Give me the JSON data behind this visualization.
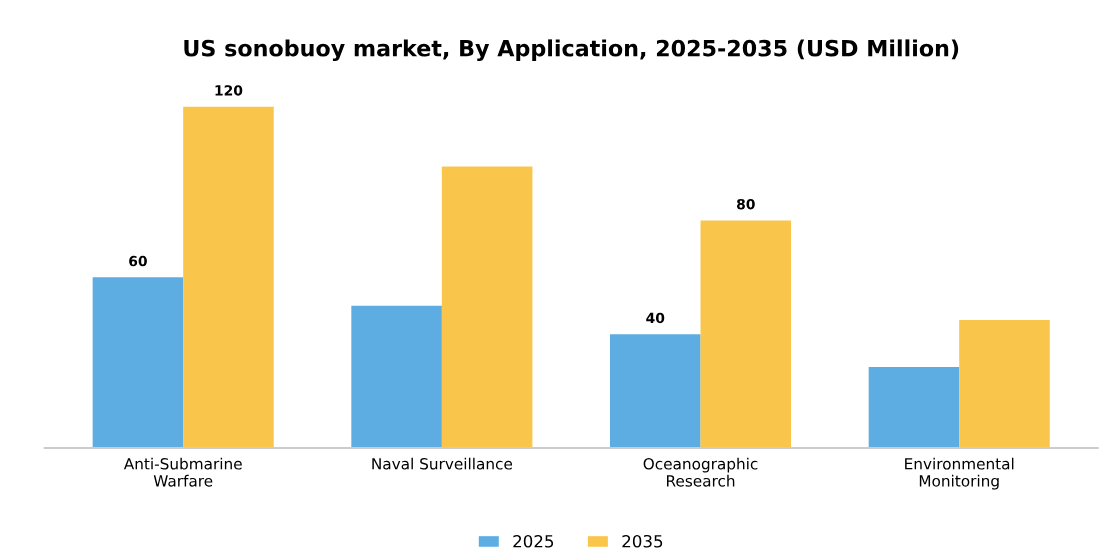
{
  "chart_data": {
    "type": "bar",
    "title": "US sonobuoy market, By Application, 2025-2035 (USD Million)",
    "categories": [
      "Anti-Submarine\nWarfare",
      "Naval Surveillance",
      "Oceanographic\nResearch",
      "Environmental\nMonitoring"
    ],
    "series": [
      {
        "name": "2025",
        "color": "#5dade2",
        "values": [
          60,
          50,
          40,
          28.5
        ],
        "value_labels": [
          "60",
          null,
          "40",
          null
        ]
      },
      {
        "name": "2035",
        "color": "#f9c54a",
        "values": [
          120,
          99,
          80,
          45
        ],
        "value_labels": [
          "120",
          null,
          "80",
          null
        ]
      }
    ],
    "grid": false,
    "legend": "bottom"
  }
}
